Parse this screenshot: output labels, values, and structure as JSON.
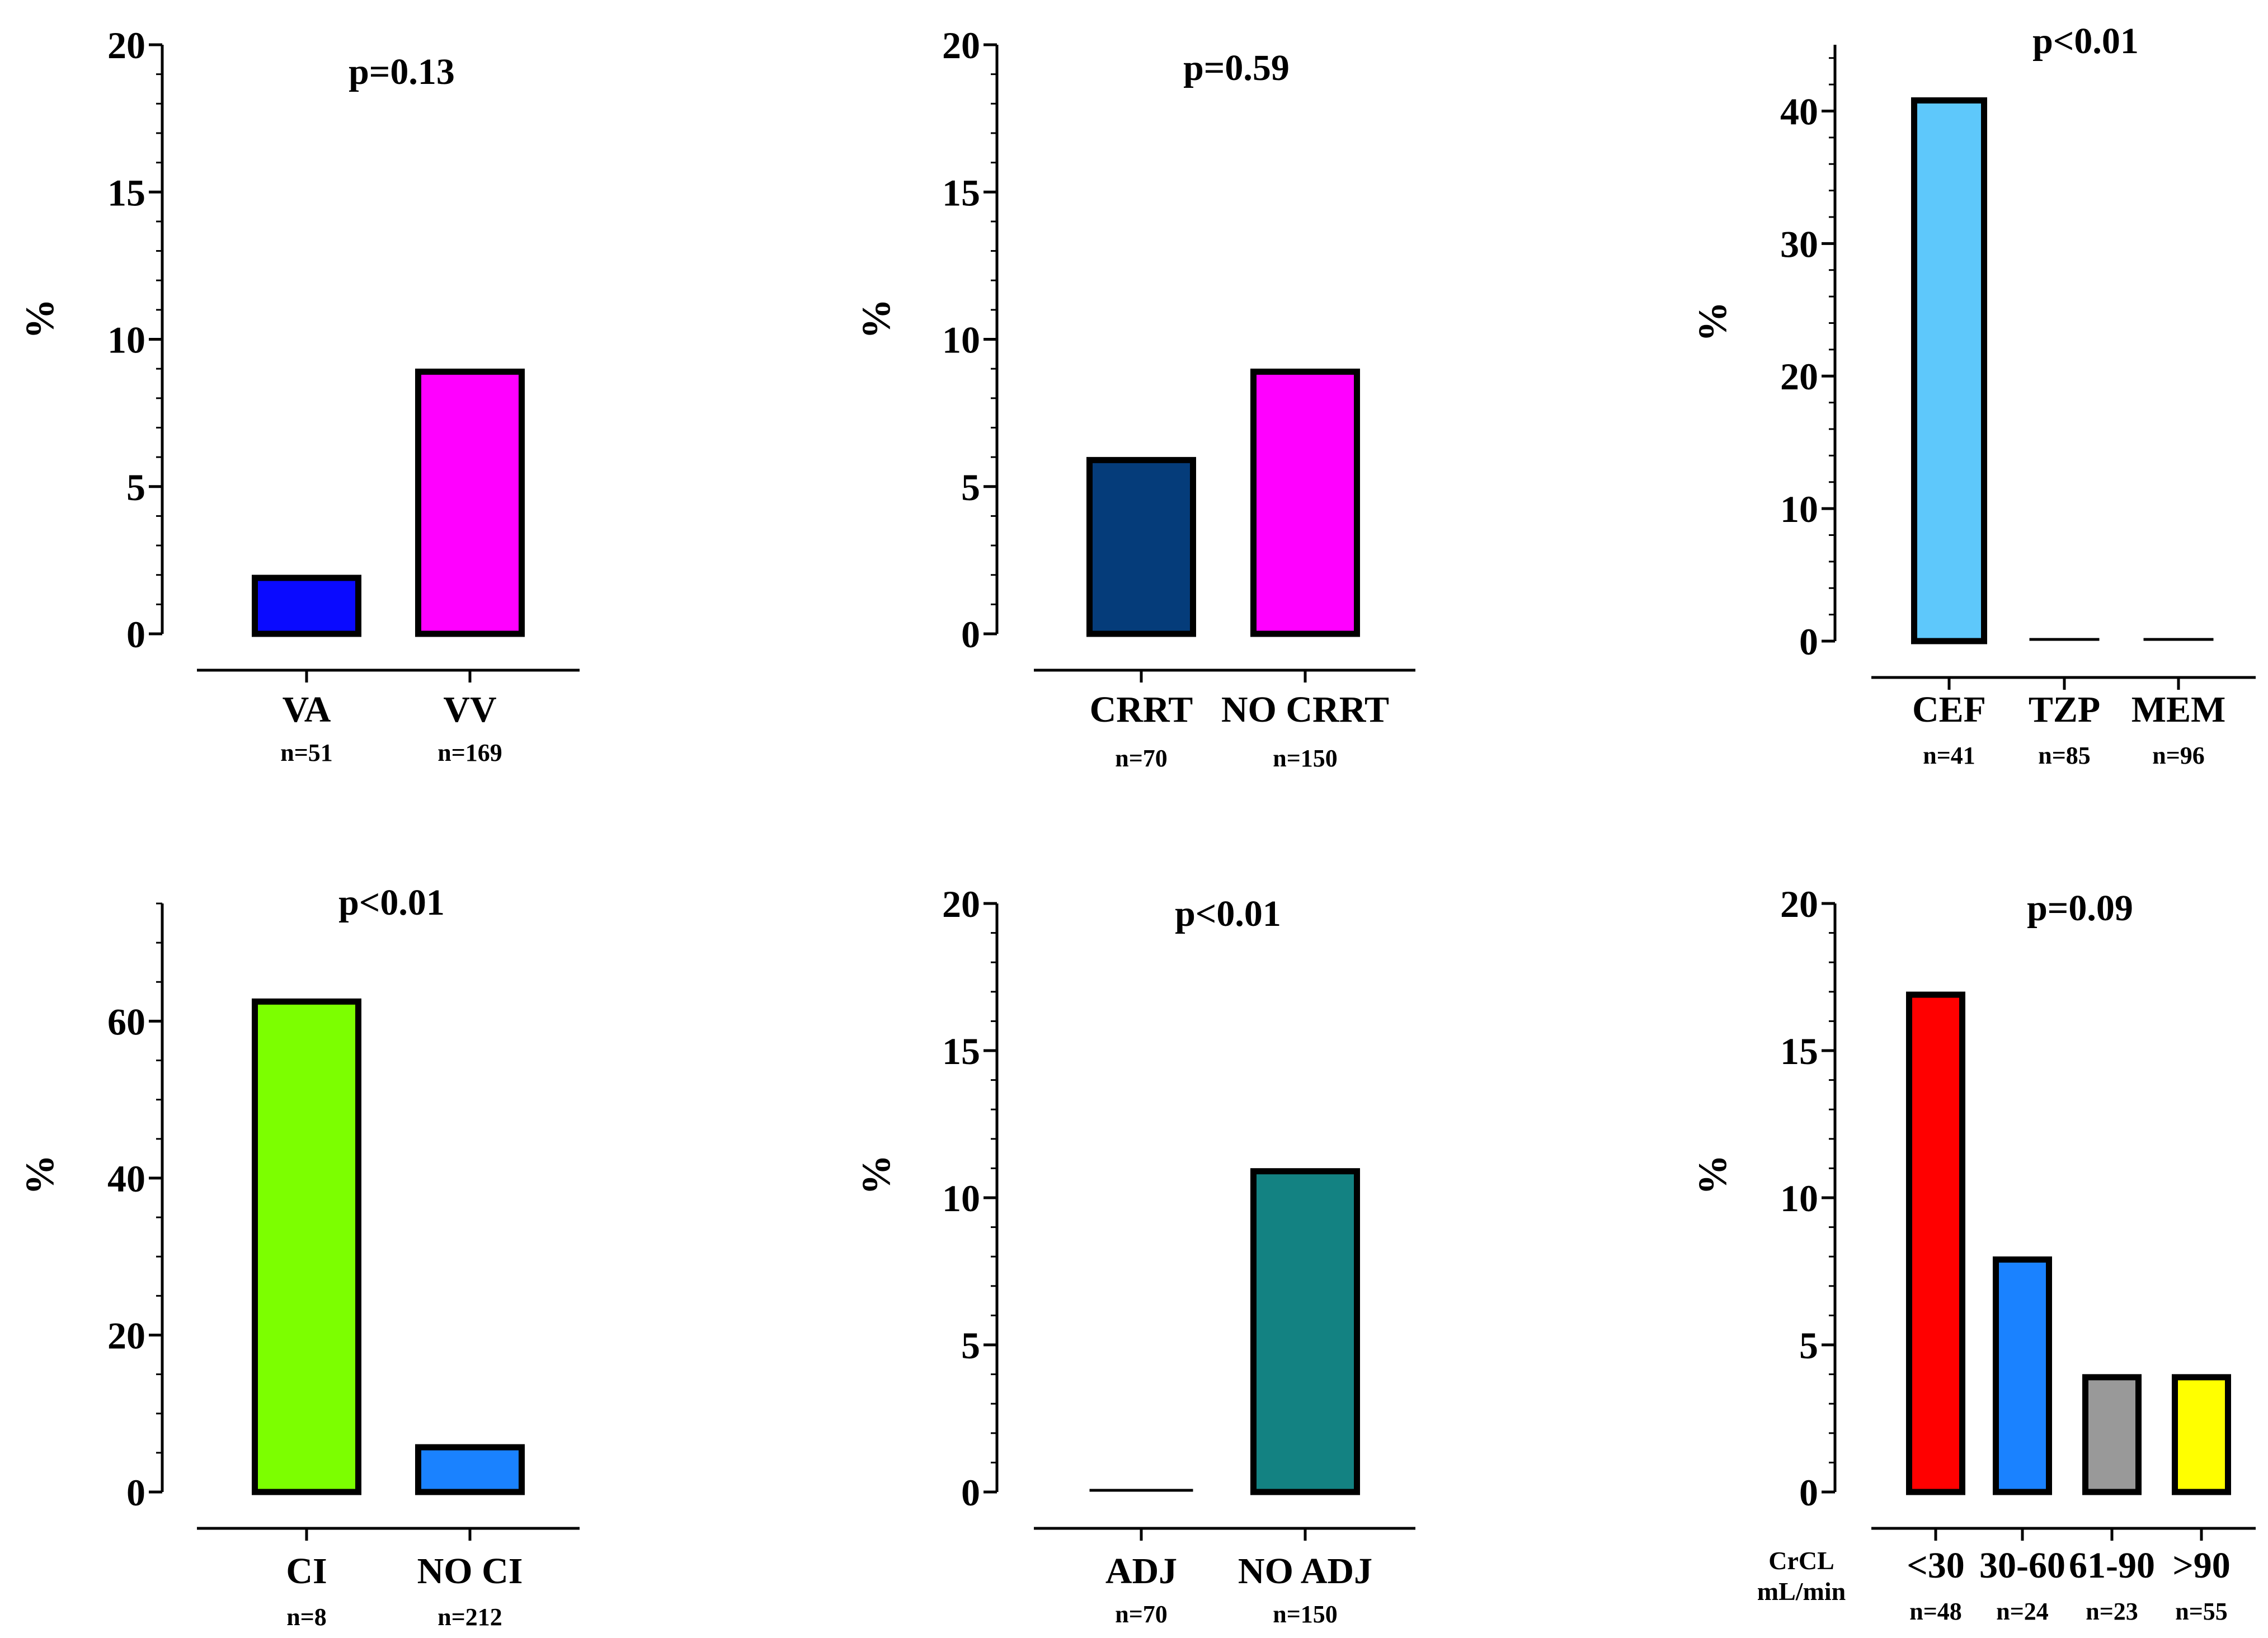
{
  "chart_data": [
    {
      "type": "bar",
      "title": "p=0.13",
      "ylabel": "%",
      "ylim": [
        0,
        20
      ],
      "yticks": [
        0,
        5,
        10,
        15,
        20
      ],
      "ytick_labels": [
        "0",
        "5",
        "10",
        "15",
        "20"
      ],
      "yminor": 1,
      "categories": [
        "VA",
        "VV"
      ],
      "n_labels": [
        "n=51",
        "n=169"
      ],
      "values": [
        1.9,
        8.9
      ],
      "colors": [
        "#0a0aff",
        "#ff00ff"
      ],
      "extra_label": ""
    },
    {
      "type": "bar",
      "title": "p=0.59",
      "ylabel": "%",
      "ylim": [
        0,
        20
      ],
      "yticks": [
        0,
        5,
        10,
        15,
        20
      ],
      "ytick_labels": [
        "0",
        "5",
        "10",
        "15",
        "20"
      ],
      "yminor": 1,
      "categories": [
        "CRRT",
        "NO CRRT"
      ],
      "n_labels": [
        "n=70",
        "n=150"
      ],
      "values": [
        5.9,
        8.9
      ],
      "colors": [
        "#053c7a",
        "#ff00ff"
      ],
      "extra_label": ""
    },
    {
      "type": "bar",
      "title": "p<0.01",
      "ylabel": "%",
      "ylim": [
        0,
        45
      ],
      "yticks": [
        0,
        10,
        20,
        30,
        40
      ],
      "ytick_labels": [
        "0",
        "10",
        "20",
        "30",
        "40"
      ],
      "yminor": 2,
      "categories": [
        "CEF",
        "TZP",
        "MEM"
      ],
      "n_labels": [
        "n=41",
        "n=85",
        "n=96"
      ],
      "values": [
        40.8,
        0,
        0
      ],
      "colors": [
        "#5ec8fb",
        "#5ec8fb",
        "#5ec8fb"
      ],
      "extra_label": ""
    },
    {
      "type": "bar",
      "title": "p<0.01",
      "ylabel": "%",
      "ylim": [
        0,
        75
      ],
      "yticks": [
        0,
        20,
        40,
        60
      ],
      "ytick_labels": [
        "0",
        "20",
        "40",
        "60"
      ],
      "yminor": 5,
      "categories": [
        "CI",
        "NO CI"
      ],
      "n_labels": [
        "n=8",
        "n=212"
      ],
      "values": [
        62.5,
        5.7
      ],
      "colors": [
        "#7cff00",
        "#1a82ff"
      ],
      "extra_label": ""
    },
    {
      "type": "bar",
      "title": "p<0.01",
      "ylabel": "%",
      "ylim": [
        0,
        20
      ],
      "yticks": [
        0,
        5,
        10,
        15,
        20
      ],
      "ytick_labels": [
        "0",
        "5",
        "10",
        "15",
        "20"
      ],
      "yminor": 1,
      "categories": [
        "ADJ",
        "NO ADJ"
      ],
      "n_labels": [
        "n=70",
        "n=150"
      ],
      "values": [
        0,
        10.9
      ],
      "colors": [
        "#138282",
        "#138282"
      ],
      "extra_label": ""
    },
    {
      "type": "bar",
      "title": "p=0.09",
      "ylabel": "%",
      "ylim": [
        0,
        20
      ],
      "yticks": [
        0,
        5,
        10,
        15,
        20
      ],
      "ytick_labels": [
        "0",
        "5",
        "10",
        "15",
        "20"
      ],
      "yminor": 1,
      "categories": [
        "<30",
        "30-60",
        "61-90",
        ">90"
      ],
      "n_labels": [
        "n=48",
        "n=24",
        "n=23",
        "n=55"
      ],
      "values": [
        16.9,
        7.9,
        3.9,
        3.9
      ],
      "colors": [
        "#ff0000",
        "#1a82ff",
        "#999999",
        "#ffff00"
      ],
      "extra_label": [
        "CrCL",
        "mL/min"
      ]
    }
  ]
}
